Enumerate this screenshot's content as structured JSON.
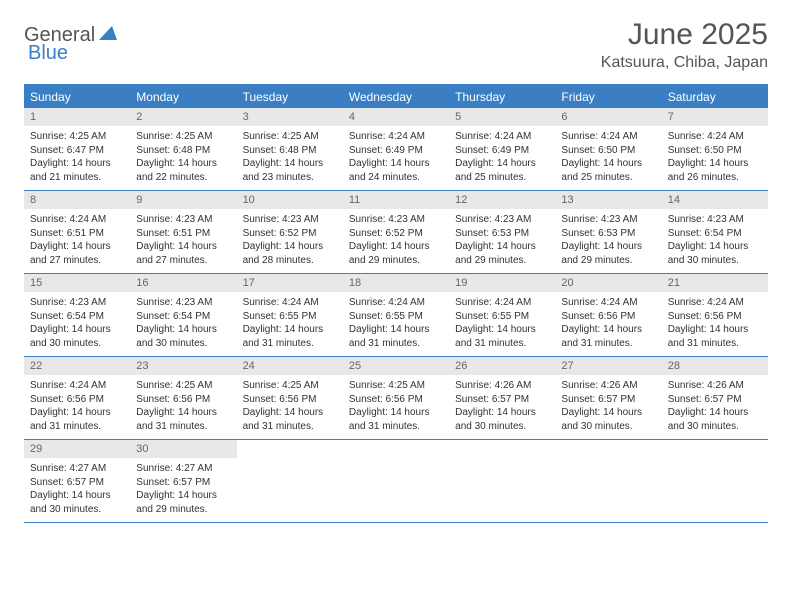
{
  "logo": {
    "general": "General",
    "blue": "Blue"
  },
  "title": "June 2025",
  "location": "Katsuura, Chiba, Japan",
  "colors": {
    "accent": "#3a7fc4",
    "daynum_bg": "#e8e8e8",
    "text": "#333333"
  },
  "daysOfWeek": [
    "Sunday",
    "Monday",
    "Tuesday",
    "Wednesday",
    "Thursday",
    "Friday",
    "Saturday"
  ],
  "weeks": [
    [
      {
        "n": "1",
        "sr": "Sunrise: 4:25 AM",
        "ss": "Sunset: 6:47 PM",
        "d1": "Daylight: 14 hours",
        "d2": "and 21 minutes."
      },
      {
        "n": "2",
        "sr": "Sunrise: 4:25 AM",
        "ss": "Sunset: 6:48 PM",
        "d1": "Daylight: 14 hours",
        "d2": "and 22 minutes."
      },
      {
        "n": "3",
        "sr": "Sunrise: 4:25 AM",
        "ss": "Sunset: 6:48 PM",
        "d1": "Daylight: 14 hours",
        "d2": "and 23 minutes."
      },
      {
        "n": "4",
        "sr": "Sunrise: 4:24 AM",
        "ss": "Sunset: 6:49 PM",
        "d1": "Daylight: 14 hours",
        "d2": "and 24 minutes."
      },
      {
        "n": "5",
        "sr": "Sunrise: 4:24 AM",
        "ss": "Sunset: 6:49 PM",
        "d1": "Daylight: 14 hours",
        "d2": "and 25 minutes."
      },
      {
        "n": "6",
        "sr": "Sunrise: 4:24 AM",
        "ss": "Sunset: 6:50 PM",
        "d1": "Daylight: 14 hours",
        "d2": "and 25 minutes."
      },
      {
        "n": "7",
        "sr": "Sunrise: 4:24 AM",
        "ss": "Sunset: 6:50 PM",
        "d1": "Daylight: 14 hours",
        "d2": "and 26 minutes."
      }
    ],
    [
      {
        "n": "8",
        "sr": "Sunrise: 4:24 AM",
        "ss": "Sunset: 6:51 PM",
        "d1": "Daylight: 14 hours",
        "d2": "and 27 minutes."
      },
      {
        "n": "9",
        "sr": "Sunrise: 4:23 AM",
        "ss": "Sunset: 6:51 PM",
        "d1": "Daylight: 14 hours",
        "d2": "and 27 minutes."
      },
      {
        "n": "10",
        "sr": "Sunrise: 4:23 AM",
        "ss": "Sunset: 6:52 PM",
        "d1": "Daylight: 14 hours",
        "d2": "and 28 minutes."
      },
      {
        "n": "11",
        "sr": "Sunrise: 4:23 AM",
        "ss": "Sunset: 6:52 PM",
        "d1": "Daylight: 14 hours",
        "d2": "and 29 minutes."
      },
      {
        "n": "12",
        "sr": "Sunrise: 4:23 AM",
        "ss": "Sunset: 6:53 PM",
        "d1": "Daylight: 14 hours",
        "d2": "and 29 minutes."
      },
      {
        "n": "13",
        "sr": "Sunrise: 4:23 AM",
        "ss": "Sunset: 6:53 PM",
        "d1": "Daylight: 14 hours",
        "d2": "and 29 minutes."
      },
      {
        "n": "14",
        "sr": "Sunrise: 4:23 AM",
        "ss": "Sunset: 6:54 PM",
        "d1": "Daylight: 14 hours",
        "d2": "and 30 minutes."
      }
    ],
    [
      {
        "n": "15",
        "sr": "Sunrise: 4:23 AM",
        "ss": "Sunset: 6:54 PM",
        "d1": "Daylight: 14 hours",
        "d2": "and 30 minutes."
      },
      {
        "n": "16",
        "sr": "Sunrise: 4:23 AM",
        "ss": "Sunset: 6:54 PM",
        "d1": "Daylight: 14 hours",
        "d2": "and 30 minutes."
      },
      {
        "n": "17",
        "sr": "Sunrise: 4:24 AM",
        "ss": "Sunset: 6:55 PM",
        "d1": "Daylight: 14 hours",
        "d2": "and 31 minutes."
      },
      {
        "n": "18",
        "sr": "Sunrise: 4:24 AM",
        "ss": "Sunset: 6:55 PM",
        "d1": "Daylight: 14 hours",
        "d2": "and 31 minutes."
      },
      {
        "n": "19",
        "sr": "Sunrise: 4:24 AM",
        "ss": "Sunset: 6:55 PM",
        "d1": "Daylight: 14 hours",
        "d2": "and 31 minutes."
      },
      {
        "n": "20",
        "sr": "Sunrise: 4:24 AM",
        "ss": "Sunset: 6:56 PM",
        "d1": "Daylight: 14 hours",
        "d2": "and 31 minutes."
      },
      {
        "n": "21",
        "sr": "Sunrise: 4:24 AM",
        "ss": "Sunset: 6:56 PM",
        "d1": "Daylight: 14 hours",
        "d2": "and 31 minutes."
      }
    ],
    [
      {
        "n": "22",
        "sr": "Sunrise: 4:24 AM",
        "ss": "Sunset: 6:56 PM",
        "d1": "Daylight: 14 hours",
        "d2": "and 31 minutes."
      },
      {
        "n": "23",
        "sr": "Sunrise: 4:25 AM",
        "ss": "Sunset: 6:56 PM",
        "d1": "Daylight: 14 hours",
        "d2": "and 31 minutes."
      },
      {
        "n": "24",
        "sr": "Sunrise: 4:25 AM",
        "ss": "Sunset: 6:56 PM",
        "d1": "Daylight: 14 hours",
        "d2": "and 31 minutes."
      },
      {
        "n": "25",
        "sr": "Sunrise: 4:25 AM",
        "ss": "Sunset: 6:56 PM",
        "d1": "Daylight: 14 hours",
        "d2": "and 31 minutes."
      },
      {
        "n": "26",
        "sr": "Sunrise: 4:26 AM",
        "ss": "Sunset: 6:57 PM",
        "d1": "Daylight: 14 hours",
        "d2": "and 30 minutes."
      },
      {
        "n": "27",
        "sr": "Sunrise: 4:26 AM",
        "ss": "Sunset: 6:57 PM",
        "d1": "Daylight: 14 hours",
        "d2": "and 30 minutes."
      },
      {
        "n": "28",
        "sr": "Sunrise: 4:26 AM",
        "ss": "Sunset: 6:57 PM",
        "d1": "Daylight: 14 hours",
        "d2": "and 30 minutes."
      }
    ],
    [
      {
        "n": "29",
        "sr": "Sunrise: 4:27 AM",
        "ss": "Sunset: 6:57 PM",
        "d1": "Daylight: 14 hours",
        "d2": "and 30 minutes."
      },
      {
        "n": "30",
        "sr": "Sunrise: 4:27 AM",
        "ss": "Sunset: 6:57 PM",
        "d1": "Daylight: 14 hours",
        "d2": "and 29 minutes."
      },
      null,
      null,
      null,
      null,
      null
    ]
  ]
}
